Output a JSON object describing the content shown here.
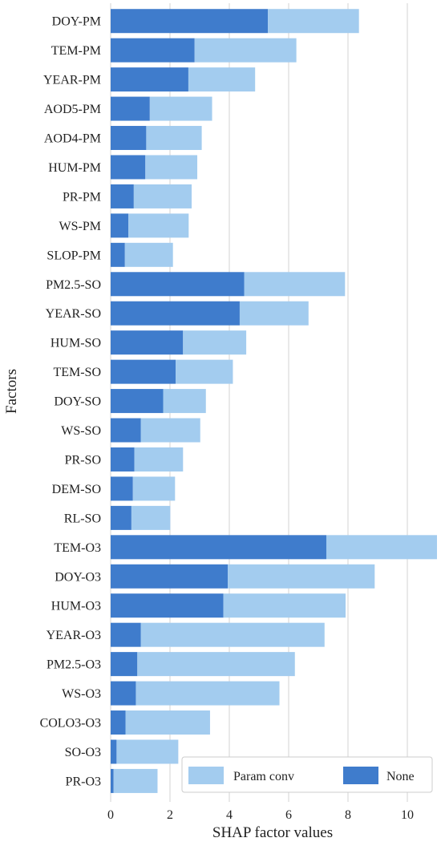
{
  "chart_data": {
    "type": "bar",
    "stacked": true,
    "orientation": "horizontal",
    "xlabel": "SHAP factor values",
    "ylabel": "Factors",
    "xlim": [
      0,
      11
    ],
    "xticks": [
      "0",
      "2",
      "4",
      "6",
      "8",
      "10"
    ],
    "grid": "vertical",
    "legend_position": "bottom-right",
    "categories": [
      "DOY-PM",
      "TEM-PM",
      "YEAR-PM",
      "AOD5-PM",
      "AOD4-PM",
      "HUM-PM",
      "PR-PM",
      "WS-PM",
      "SLOP-PM",
      "PM2.5-SO",
      "YEAR-SO",
      "HUM-SO",
      "TEM-SO",
      "DOY-SO",
      "WS-SO",
      "PR-SO",
      "DEM-SO",
      "RL-SO",
      "TEM-O3",
      "DOY-O3",
      "HUM-O3",
      "YEAR-O3",
      "PM2.5-O3",
      "WS-O3",
      "COLO3-O3",
      "SO-O3",
      "PR-O3"
    ],
    "series": [
      {
        "name": "None",
        "color": "#3f7ccc",
        "values": [
          5.3,
          2.83,
          2.62,
          1.32,
          1.2,
          1.17,
          0.78,
          0.6,
          0.48,
          4.5,
          4.35,
          2.44,
          2.19,
          1.77,
          1.02,
          0.8,
          0.75,
          0.7,
          7.27,
          3.95,
          3.8,
          1.02,
          0.9,
          0.85,
          0.5,
          0.2,
          0.1
        ]
      },
      {
        "name": "Param conv",
        "color": "#a3ccef",
        "values": [
          3.07,
          3.43,
          2.25,
          2.1,
          1.87,
          1.75,
          1.95,
          2.03,
          1.62,
          3.4,
          2.32,
          2.13,
          1.93,
          1.44,
          2.0,
          1.64,
          1.42,
          1.31,
          3.73,
          4.95,
          4.12,
          6.19,
          5.31,
          4.84,
          2.85,
          2.08,
          1.48
        ]
      }
    ],
    "legend": [
      "Param conv",
      "None"
    ]
  }
}
